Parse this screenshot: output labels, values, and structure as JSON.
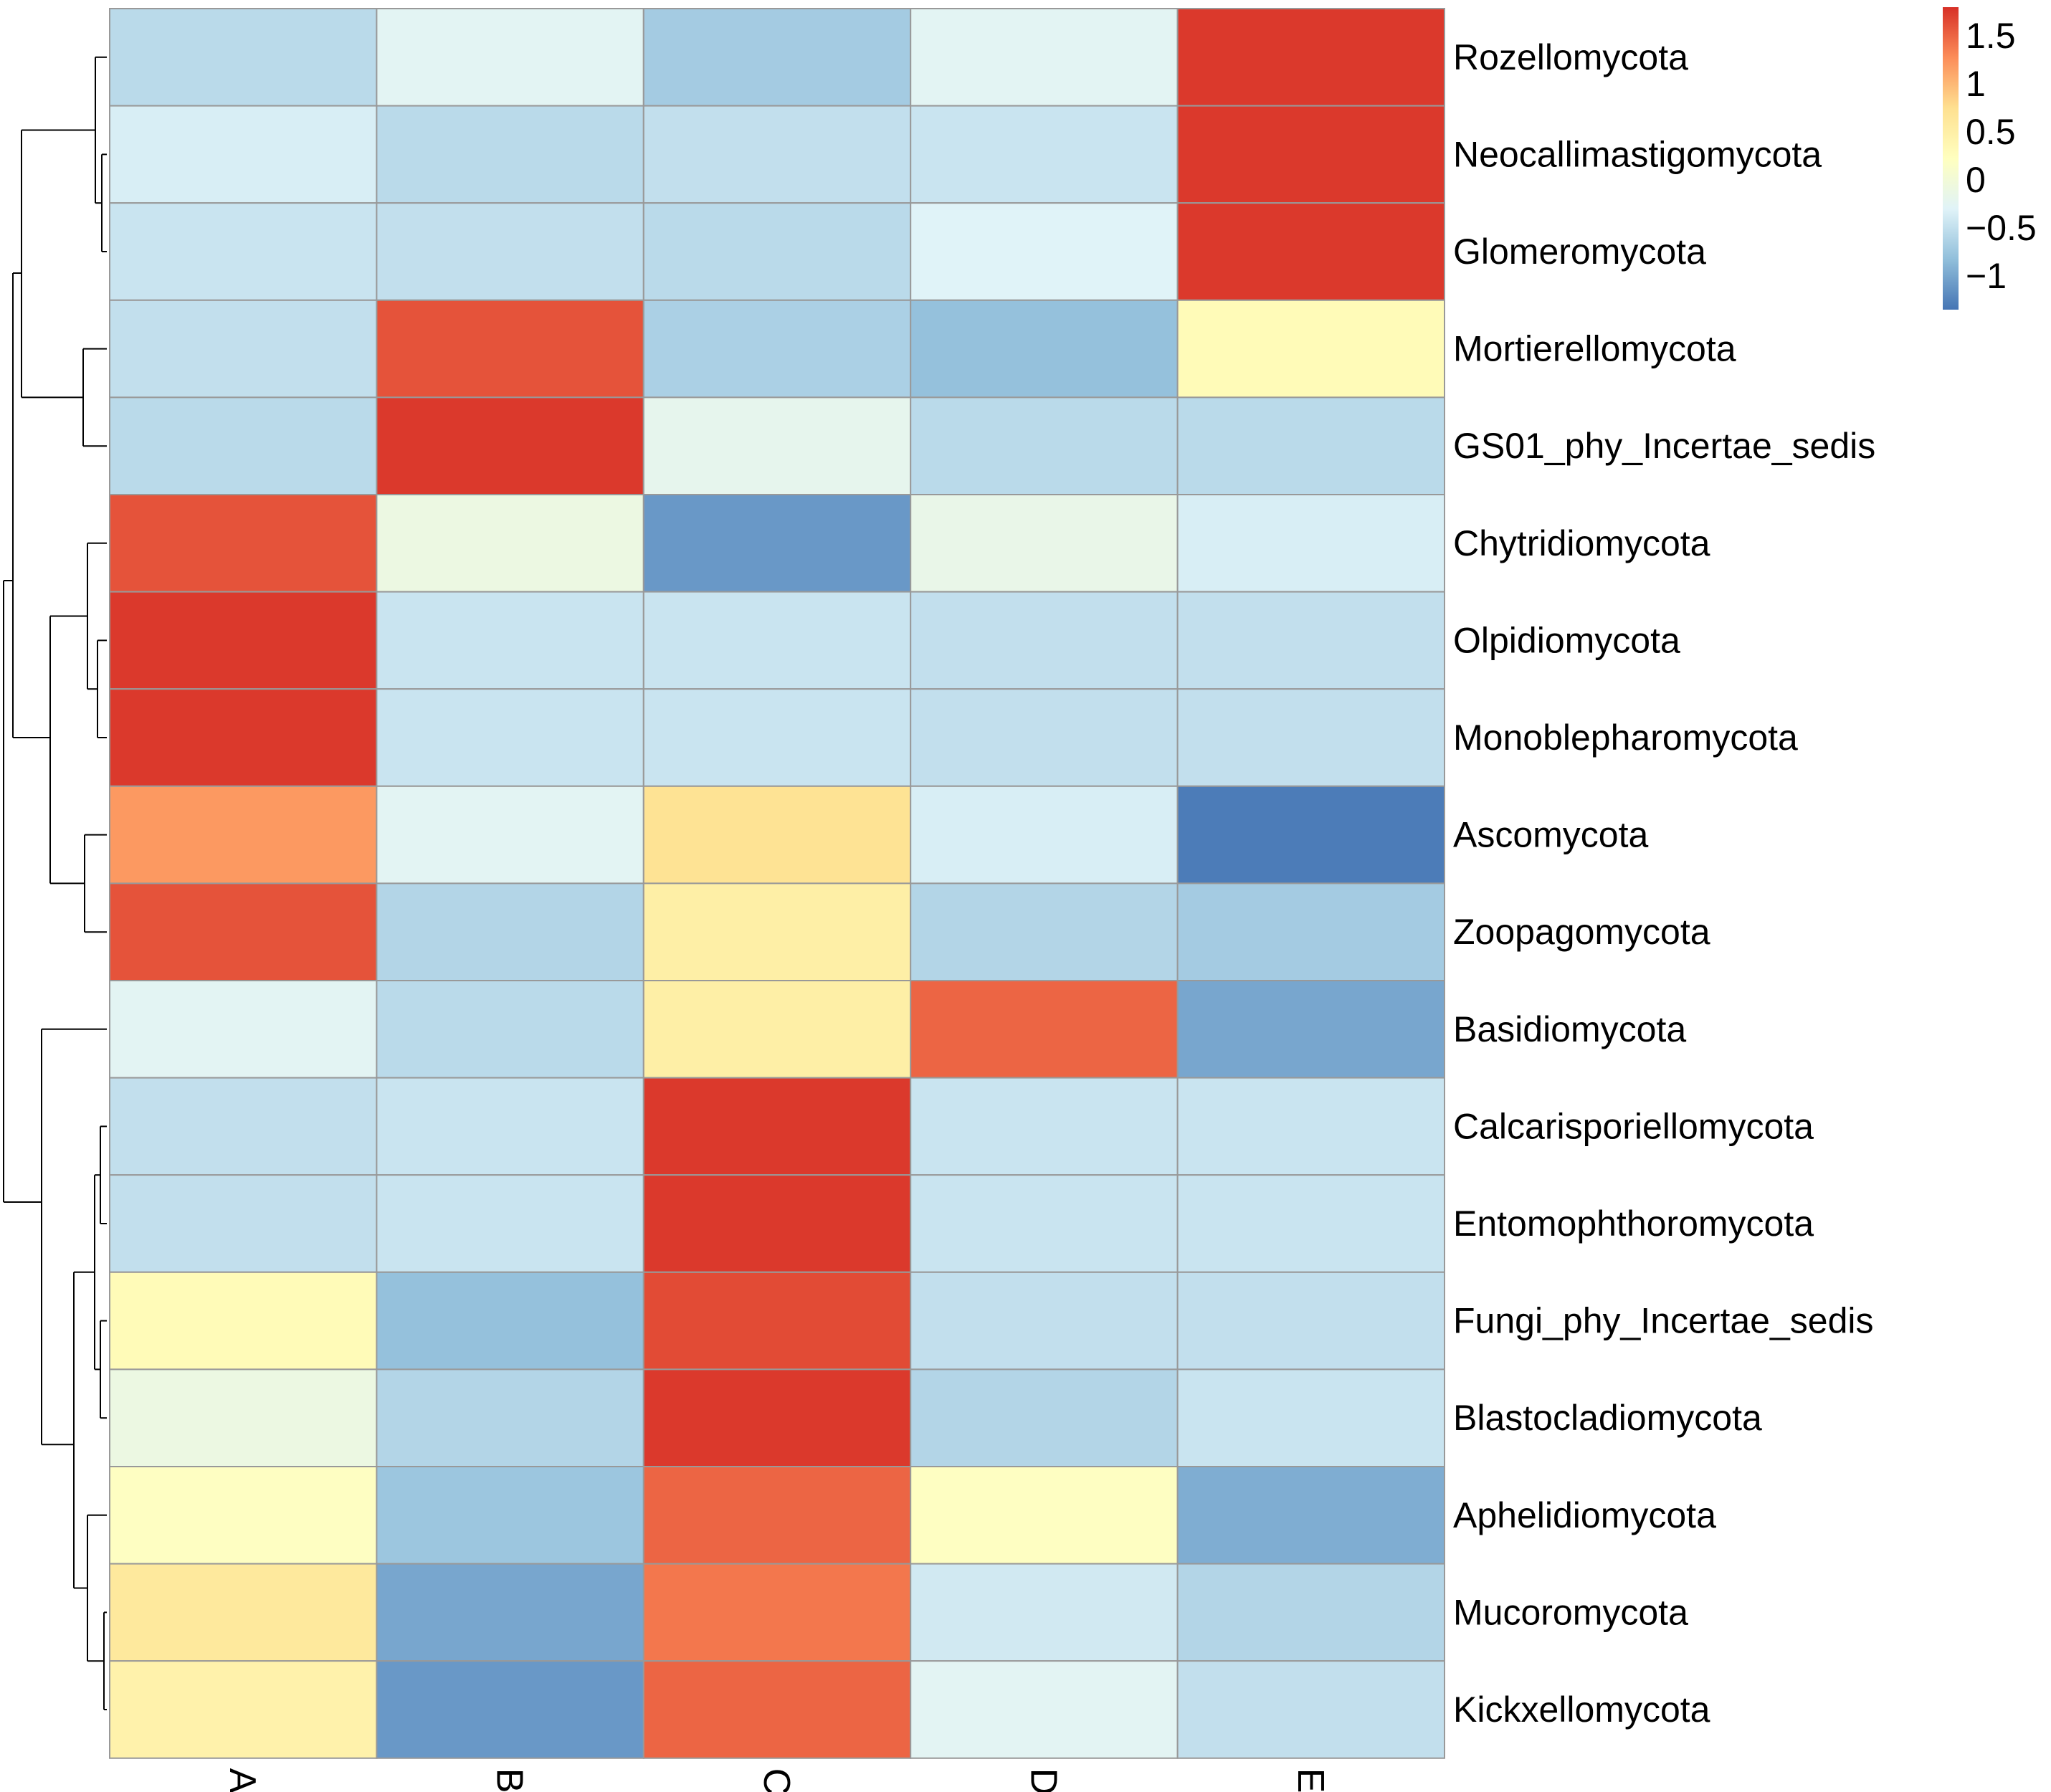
{
  "chart_data": {
    "type": "heatmap",
    "title": "",
    "xlabel": "",
    "ylabel": "",
    "columns": [
      "A",
      "B",
      "C",
      "D",
      "E"
    ],
    "rows": [
      "Rozellomycota",
      "Neocallimastigomycota",
      "Glomeromycota",
      "Mortierellomycota",
      "GS01_phy_Incertae_sedis",
      "Chytridiomycota",
      "Olpidiomycota",
      "Monoblepharomycota",
      "Ascomycota",
      "Zoopagomycota",
      "Basidiomycota",
      "Calcarisporiellomycota",
      "Entomophthoromycota",
      "Fungi_phy_Incertae_sedis",
      "Blastocladiomycota",
      "Aphelidiomycota",
      "Mucoromycota",
      "Kickxellomycota"
    ],
    "values": [
      [
        -0.55,
        -0.25,
        -0.7,
        -0.25,
        1.75
      ],
      [
        -0.35,
        -0.55,
        -0.5,
        -0.45,
        1.75
      ],
      [
        -0.45,
        -0.5,
        -0.55,
        -0.3,
        1.75
      ],
      [
        -0.5,
        1.6,
        -0.65,
        -0.8,
        0.3
      ],
      [
        -0.55,
        1.75,
        -0.2,
        -0.55,
        -0.55
      ],
      [
        1.6,
        -0.1,
        -1.1,
        -0.15,
        -0.35
      ],
      [
        1.75,
        -0.45,
        -0.45,
        -0.5,
        -0.5
      ],
      [
        1.75,
        -0.45,
        -0.45,
        -0.5,
        -0.5
      ],
      [
        1.2,
        -0.25,
        0.7,
        -0.35,
        -1.3
      ],
      [
        1.6,
        -0.6,
        0.5,
        -0.6,
        -0.7
      ],
      [
        -0.25,
        -0.55,
        0.5,
        1.5,
        -1.0
      ],
      [
        -0.5,
        -0.45,
        1.75,
        -0.45,
        -0.45
      ],
      [
        -0.5,
        -0.45,
        1.75,
        -0.45,
        -0.45
      ],
      [
        0.3,
        -0.8,
        1.65,
        -0.5,
        -0.5
      ],
      [
        -0.1,
        -0.6,
        1.75,
        -0.6,
        -0.45
      ],
      [
        0.2,
        -0.75,
        1.5,
        0.2,
        -0.95
      ],
      [
        0.6,
        -1.0,
        1.4,
        -0.4,
        -0.6
      ],
      [
        0.45,
        -1.1,
        1.5,
        -0.25,
        -0.5
      ]
    ],
    "legend": {
      "placement": "top-right",
      "ticks": [
        "1.5",
        "1",
        "0.5",
        "0",
        "−0.5",
        "−1"
      ],
      "tick_values": [
        1.5,
        1,
        0.5,
        0,
        -0.5,
        -1
      ],
      "range": [
        -1.35,
        1.8
      ],
      "colors": [
        "#4575B4",
        "#91BFDB",
        "#E0F3F8",
        "#FFFFBF",
        "#FEE090",
        "#FC8D59",
        "#D73027"
      ]
    },
    "cell_border_color": "#999999",
    "dendrogram": "row",
    "dendrogram_side": "left"
  }
}
